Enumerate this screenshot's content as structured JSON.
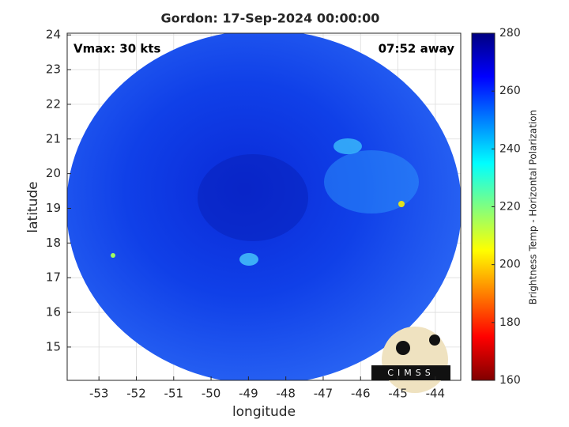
{
  "chart_data": {
    "type": "image",
    "title": "Gordon: 17-Sep-2024 00:00:00",
    "annotations": [
      "Vmax: 30 kts",
      "07:52 away"
    ],
    "xlabel": "longitude",
    "ylabel": "latitude",
    "xlim": [
      -53.85,
      -43.32
    ],
    "ylim": [
      14.04,
      24.05
    ],
    "xticks": [
      -53,
      -52,
      -51,
      -50,
      -49,
      -48,
      -47,
      -46,
      -45,
      -44
    ],
    "yticks": [
      15,
      16,
      17,
      18,
      19,
      20,
      21,
      22,
      23,
      24
    ],
    "grid": true,
    "colorbar": {
      "label": "Brightness Temp - Horizontal Polarization",
      "colormap": "jet",
      "clim": [
        160,
        280
      ],
      "ticks": [
        160,
        180,
        200,
        220,
        240,
        260,
        280
      ]
    },
    "logo_text": "CIMSS"
  }
}
